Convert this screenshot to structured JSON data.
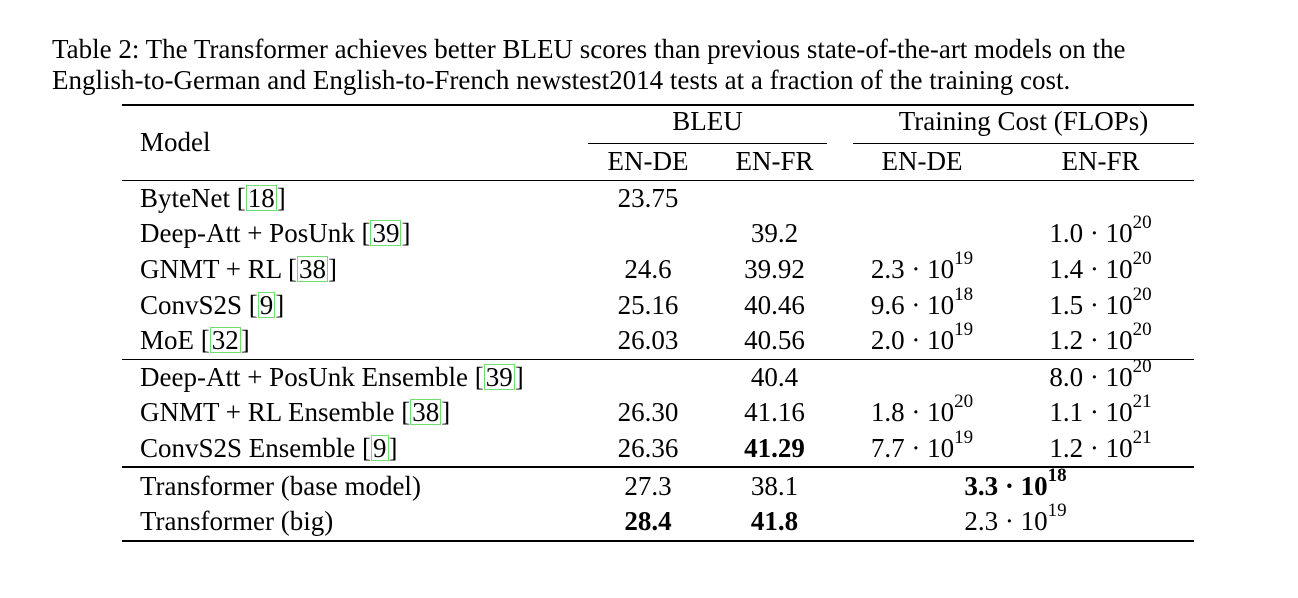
{
  "caption": {
    "line1": "Table 2: The Transformer achieves better BLEU scores than previous state-of-the-art models on the",
    "line2": "English-to-German and English-to-French newstest2014 tests at a fraction of the training cost."
  },
  "headers": {
    "model": "Model",
    "bleu": "BLEU",
    "cost": "Training Cost (FLOPs)",
    "en_de": "EN-DE",
    "en_fr": "EN-FR",
    "cost_en_de": "EN-DE",
    "cost_en_fr": "EN-FR"
  },
  "rows": [
    {
      "model": "ByteNet ",
      "ref": "18",
      "bleu_de": "23.75",
      "bleu_fr": "",
      "cost_de": "",
      "cost_de_exp": "",
      "cost_fr": "",
      "cost_fr_exp": ""
    },
    {
      "model": "Deep-Att + PosUnk ",
      "ref": "39",
      "bleu_de": "",
      "bleu_fr": "39.2",
      "cost_de": "",
      "cost_de_exp": "",
      "cost_fr": "1.0 · 10",
      "cost_fr_exp": "20"
    },
    {
      "model": "GNMT + RL ",
      "ref": "38",
      "bleu_de": "24.6",
      "bleu_fr": "39.92",
      "cost_de": "2.3 · 10",
      "cost_de_exp": "19",
      "cost_fr": "1.4 · 10",
      "cost_fr_exp": "20"
    },
    {
      "model": "ConvS2S ",
      "ref": "9",
      "bleu_de": "25.16",
      "bleu_fr": "40.46",
      "cost_de": "9.6 · 10",
      "cost_de_exp": "18",
      "cost_fr": "1.5 · 10",
      "cost_fr_exp": "20"
    },
    {
      "model": "MoE ",
      "ref": "32",
      "bleu_de": "26.03",
      "bleu_fr": "40.56",
      "cost_de": "2.0 · 10",
      "cost_de_exp": "19",
      "cost_fr": "1.2 · 10",
      "cost_fr_exp": "20"
    },
    {
      "model": "Deep-Att + PosUnk Ensemble ",
      "ref": "39",
      "bleu_de": "",
      "bleu_fr": "40.4",
      "cost_de": "",
      "cost_de_exp": "",
      "cost_fr": "8.0 · 10",
      "cost_fr_exp": "20"
    },
    {
      "model": "GNMT + RL Ensemble ",
      "ref": "38",
      "bleu_de": "26.30",
      "bleu_fr": "41.16",
      "cost_de": "1.8 · 10",
      "cost_de_exp": "20",
      "cost_fr": "1.1 · 10",
      "cost_fr_exp": "21"
    },
    {
      "model": "ConvS2S Ensemble ",
      "ref": "9",
      "bleu_de": "26.36",
      "bleu_fr": "41.29",
      "cost_de": "7.7 · 10",
      "cost_de_exp": "19",
      "cost_fr": "1.2 · 10",
      "cost_fr_exp": "21"
    },
    {
      "model": "Transformer (base model)",
      "bleu_de": "27.3",
      "bleu_fr": "38.1",
      "cost": "3.3 · 10",
      "cost_exp": "18"
    },
    {
      "model": "Transformer (big)",
      "bleu_de": "28.4",
      "bleu_fr": "41.8",
      "cost": "2.3 · 10",
      "cost_exp": "19"
    }
  ]
}
